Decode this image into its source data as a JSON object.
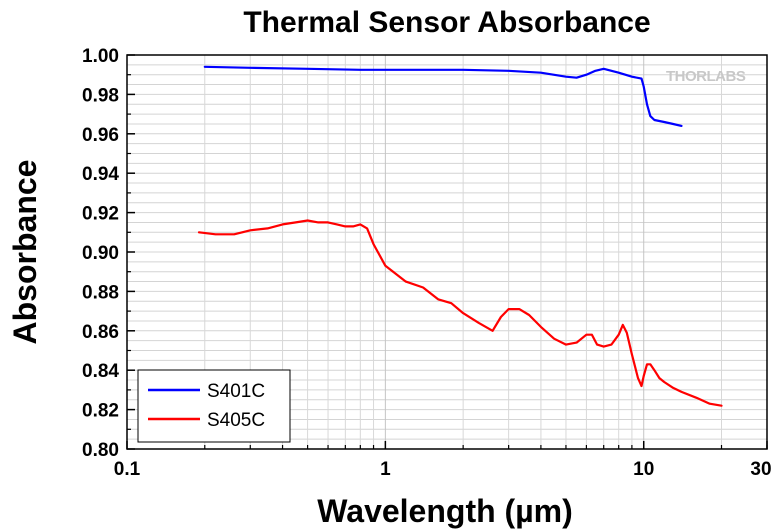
{
  "chart_data": {
    "type": "line",
    "title": "Thermal Sensor Absorbance",
    "xlabel": "Wavelength (µm)",
    "ylabel": "Absorbance",
    "xscale": "log",
    "xlim": [
      0.1,
      30
    ],
    "ylim": [
      0.8,
      1.0
    ],
    "x_ticks": [
      0.1,
      1,
      10,
      30
    ],
    "x_tick_labels": [
      "0.1",
      "1",
      "10",
      "30"
    ],
    "y_ticks": [
      0.8,
      0.82,
      0.84,
      0.86,
      0.88,
      0.9,
      0.92,
      0.94,
      0.96,
      0.98,
      1.0
    ],
    "y_tick_labels": [
      "0.80",
      "0.82",
      "0.84",
      "0.86",
      "0.88",
      "0.90",
      "0.92",
      "0.94",
      "0.96",
      "0.98",
      "1.00"
    ],
    "grid": true,
    "legend_position": "bottom-left",
    "logo": "THORLABS",
    "series": [
      {
        "name": "S401C",
        "color": "#0000ff",
        "x": [
          0.2,
          0.3,
          0.5,
          0.8,
          1.0,
          1.5,
          2.0,
          3.0,
          4.0,
          5.0,
          5.5,
          6.0,
          6.5,
          7.0,
          8.0,
          9.0,
          9.8,
          10.0,
          10.3,
          10.6,
          11.0,
          12.0,
          13.0,
          14.0
        ],
        "values": [
          0.994,
          0.9935,
          0.993,
          0.9925,
          0.9925,
          0.9925,
          0.9925,
          0.992,
          0.991,
          0.989,
          0.9885,
          0.99,
          0.992,
          0.993,
          0.991,
          0.989,
          0.988,
          0.984,
          0.975,
          0.969,
          0.967,
          0.966,
          0.965,
          0.964
        ]
      },
      {
        "name": "S405C",
        "color": "#ff0000",
        "x": [
          0.19,
          0.22,
          0.26,
          0.3,
          0.35,
          0.4,
          0.45,
          0.5,
          0.55,
          0.6,
          0.65,
          0.7,
          0.75,
          0.8,
          0.85,
          0.9,
          1.0,
          1.2,
          1.4,
          1.6,
          1.8,
          2.0,
          2.3,
          2.6,
          2.8,
          3.0,
          3.3,
          3.6,
          4.0,
          4.5,
          5.0,
          5.5,
          6.0,
          6.3,
          6.6,
          7.0,
          7.5,
          8.0,
          8.3,
          8.6,
          9.0,
          9.5,
          9.8,
          10.0,
          10.3,
          10.6,
          11.0,
          11.5,
          12.0,
          13.0,
          14.0,
          16.0,
          18.0,
          20.0
        ],
        "values": [
          0.91,
          0.909,
          0.909,
          0.911,
          0.912,
          0.914,
          0.915,
          0.916,
          0.915,
          0.915,
          0.914,
          0.913,
          0.913,
          0.914,
          0.912,
          0.904,
          0.893,
          0.885,
          0.882,
          0.876,
          0.874,
          0.869,
          0.864,
          0.86,
          0.867,
          0.871,
          0.871,
          0.868,
          0.862,
          0.856,
          0.853,
          0.854,
          0.858,
          0.858,
          0.853,
          0.852,
          0.853,
          0.858,
          0.863,
          0.859,
          0.848,
          0.836,
          0.832,
          0.837,
          0.843,
          0.843,
          0.84,
          0.836,
          0.834,
          0.831,
          0.829,
          0.826,
          0.823,
          0.822
        ]
      }
    ]
  }
}
